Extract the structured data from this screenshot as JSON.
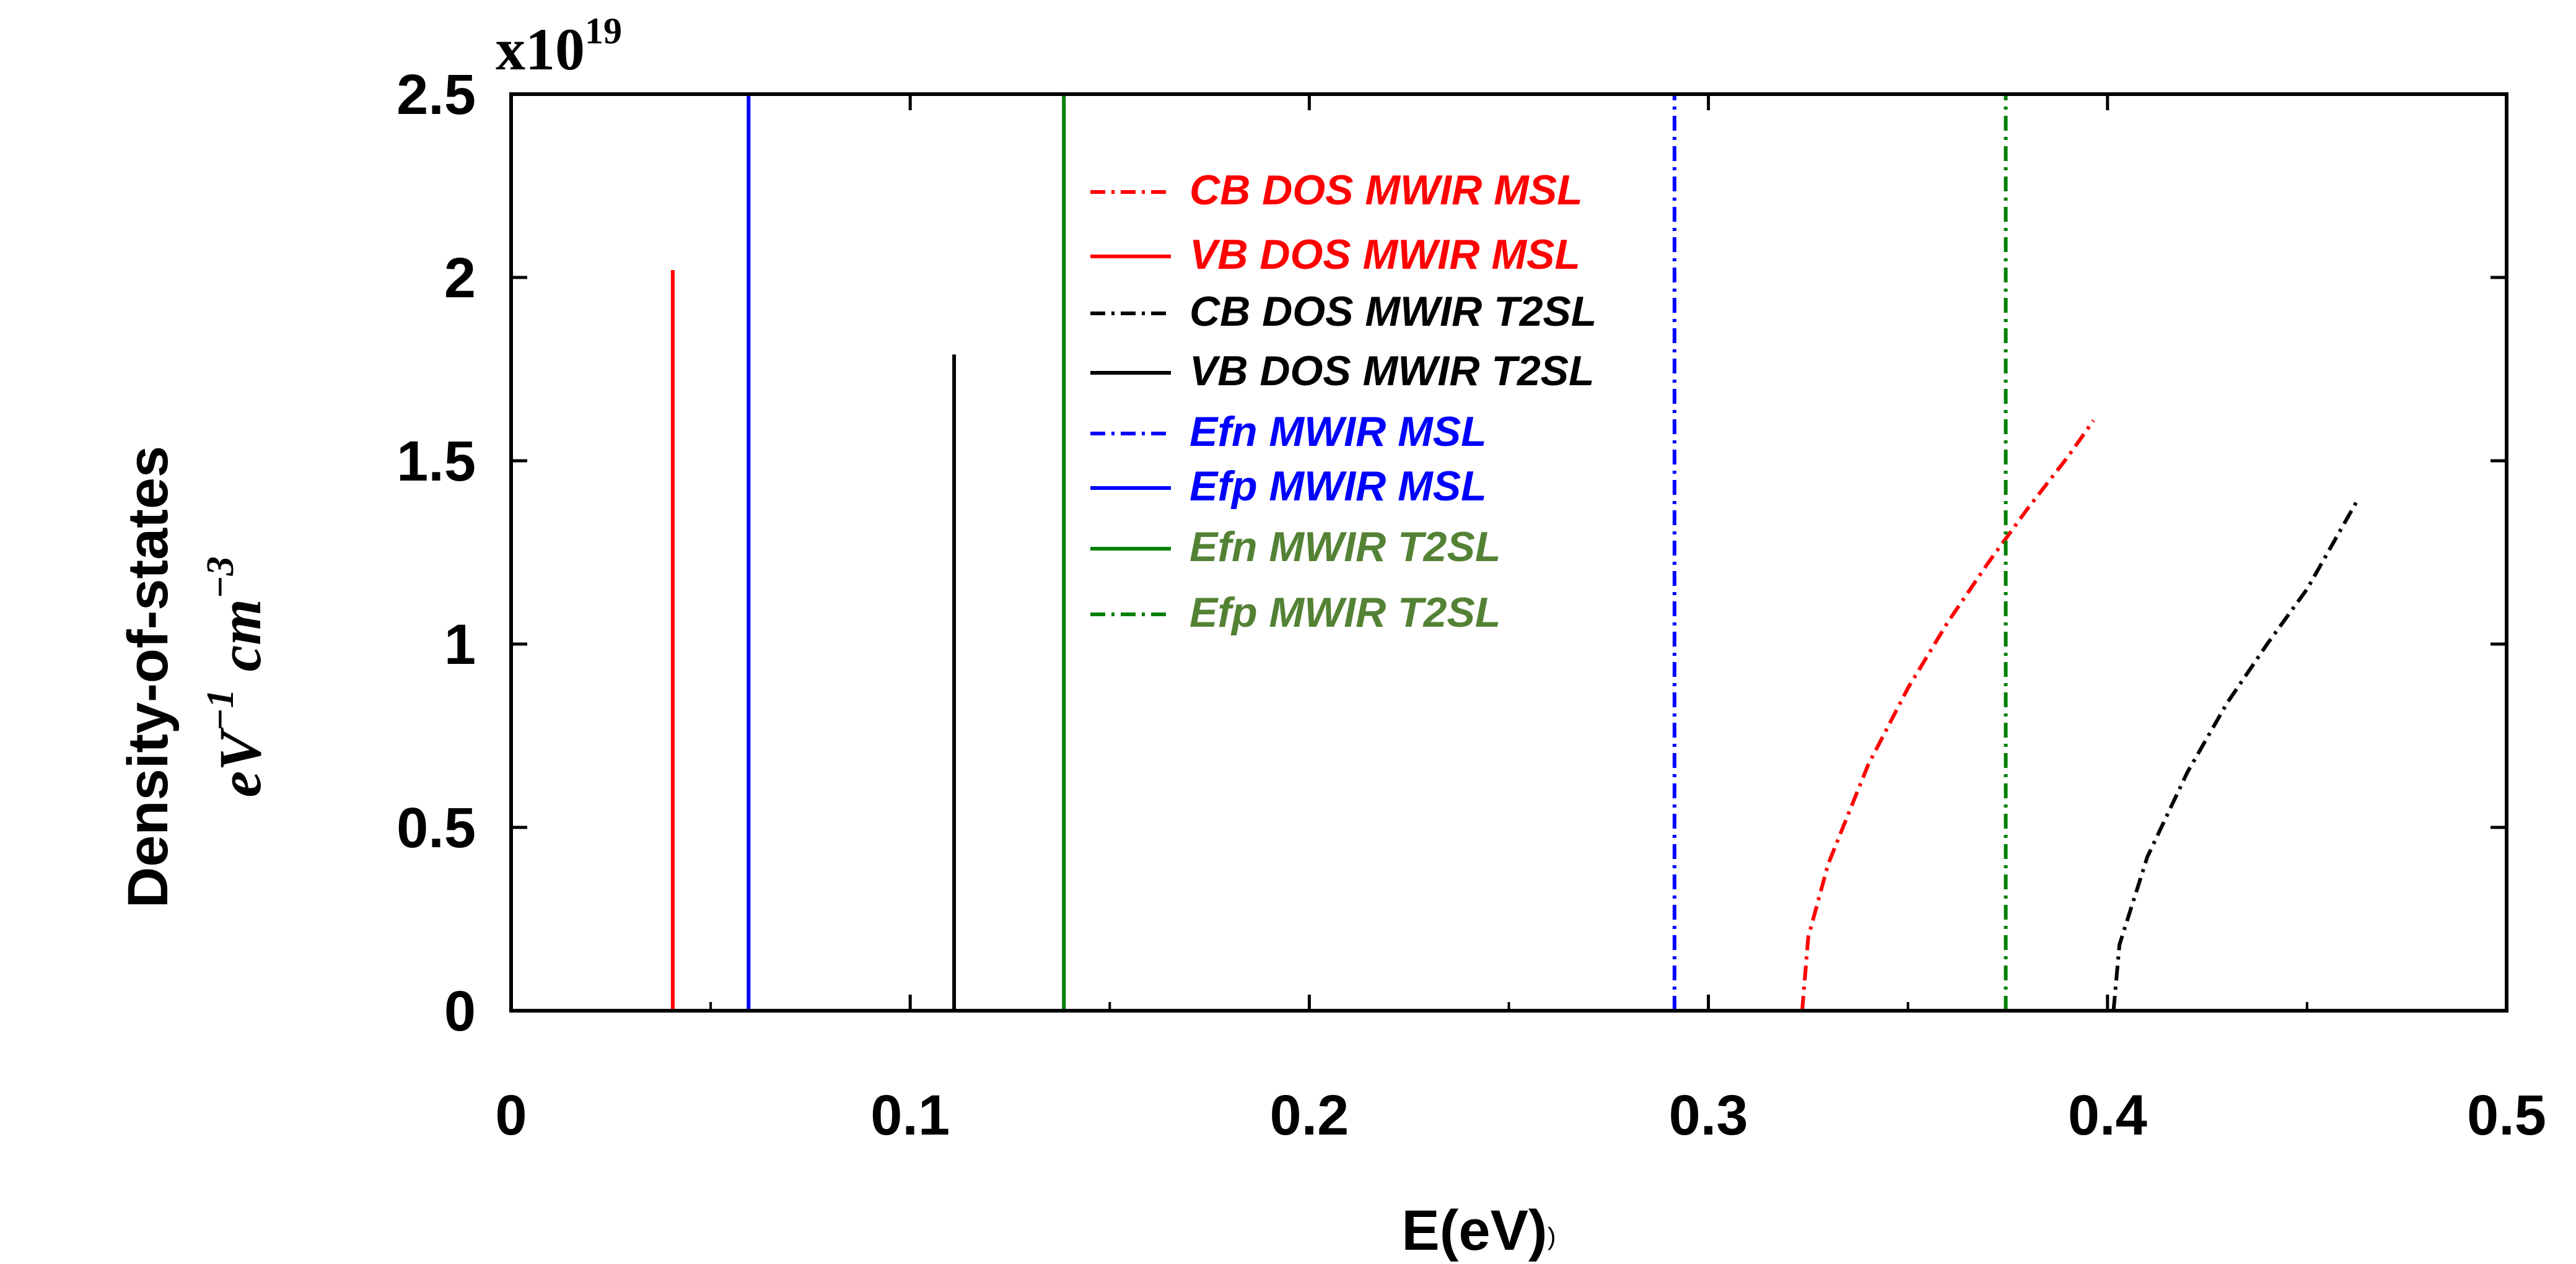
{
  "chart_data": {
    "type": "line",
    "xlabel": "E(eV)",
    "ylabel_line1": "Density-of-states",
    "ylabel_line2": {
      "base1": "eV",
      "sup1": "−1",
      "base2": "cm",
      "sup2": "−3"
    },
    "multiplier": {
      "base": "x10",
      "exponent": "19"
    },
    "xlim": [
      0,
      0.5
    ],
    "ylim": [
      0,
      2.5
    ],
    "x_ticks": [
      0,
      0.1,
      0.2,
      0.3,
      0.4,
      0.5
    ],
    "x_tick_labels": [
      "0",
      "0.1",
      "0.2",
      "0.3",
      "0.4",
      "0.5"
    ],
    "y_ticks": [
      0,
      0.5,
      1,
      1.5,
      2,
      2.5
    ],
    "y_tick_labels": [
      "0",
      "0.5",
      "1",
      "1.5",
      "2",
      "2.5"
    ],
    "x_minor_ticks": [
      0.05,
      0.15,
      0.25,
      0.35,
      0.45
    ],
    "grid": false,
    "legend_position": "top-center",
    "series": [
      {
        "name": "CB DOS MWIR MSL",
        "kind": "curve",
        "color": "#ff0000",
        "dash": "dashdot",
        "x": [
          0.3235,
          0.325,
          0.33,
          0.34,
          0.35,
          0.36,
          0.37,
          0.38,
          0.39,
          0.3965
        ],
        "y": [
          0,
          0.2,
          0.4,
          0.67,
          0.88,
          1.06,
          1.22,
          1.37,
          1.51,
          1.61
        ]
      },
      {
        "name": "VB DOS MWIR MSL",
        "kind": "vline",
        "color": "#ff0000",
        "dash": "solid",
        "x": 0.0405,
        "y_range": [
          0,
          2.02
        ]
      },
      {
        "name": "CB DOS MWIR T2SL",
        "kind": "curve",
        "color": "#000000",
        "dash": "dashdot",
        "x": [
          0.4015,
          0.403,
          0.41,
          0.42,
          0.43,
          0.44,
          0.45,
          0.4625
        ],
        "y": [
          0,
          0.18,
          0.42,
          0.65,
          0.84,
          1.0,
          1.15,
          1.39
        ]
      },
      {
        "name": "VB DOS MWIR T2SL",
        "kind": "vline",
        "color": "#000000",
        "dash": "solid",
        "x": 0.111,
        "y_range": [
          0,
          1.79
        ]
      },
      {
        "name": "Efn MWIR MSL",
        "kind": "vline",
        "color": "#0000ff",
        "dash": "dashdot",
        "x": 0.2915,
        "y_range": [
          0,
          2.5
        ]
      },
      {
        "name": "Efp MWIR MSL",
        "kind": "vline",
        "color": "#0000ff",
        "dash": "solid",
        "x": 0.0595,
        "y_range": [
          0,
          2.5
        ]
      },
      {
        "name": "Efn MWIR T2SL",
        "kind": "vline",
        "color": "#008000",
        "dash": "solid",
        "x": 0.1385,
        "y_range": [
          0,
          2.5
        ]
      },
      {
        "name": "Efp MWIR T2SL",
        "kind": "vline",
        "color": "#008000",
        "dash": "dashdot",
        "x": 0.3745,
        "y_range": [
          0,
          2.5
        ]
      }
    ],
    "legend": [
      {
        "label": "CB DOS MWIR MSL",
        "color": "#ff0000",
        "text_color": "#ff0000",
        "dash": "dashdot"
      },
      {
        "label": "VB DOS MWIR MSL",
        "color": "#ff0000",
        "text_color": "#ff0000",
        "dash": "solid"
      },
      {
        "label": "CB DOS MWIR T2SL",
        "color": "#000000",
        "text_color": "#000000",
        "dash": "dashdot"
      },
      {
        "label": "VB DOS MWIR T2SL",
        "color": "#000000",
        "text_color": "#000000",
        "dash": "solid"
      },
      {
        "label": "Efn MWIR MSL",
        "color": "#0000ff",
        "text_color": "#0000ff",
        "dash": "dashdot"
      },
      {
        "label": "Efp MWIR MSL",
        "color": "#0000ff",
        "text_color": "#0000ff",
        "dash": "solid"
      },
      {
        "label": "Efn MWIR T2SL",
        "color": "#008000",
        "text_color": "#548235",
        "dash": "solid"
      },
      {
        "label": "Efp MWIR T2SL",
        "color": "#008000",
        "text_color": "#548235",
        "dash": "dashdot"
      }
    ]
  }
}
